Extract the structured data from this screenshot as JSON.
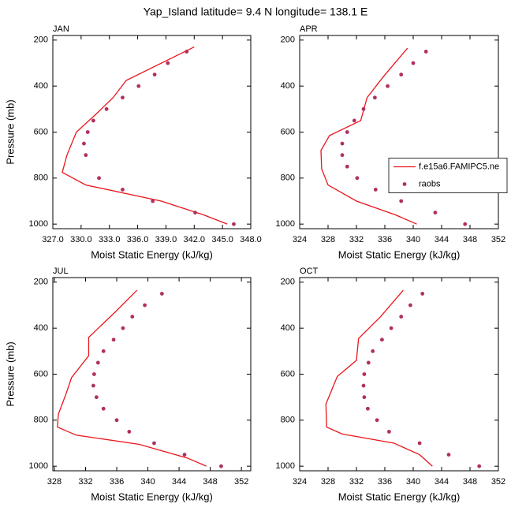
{
  "title": "Yap_Island  latitude= 9.4 N longitude= 138.1 E",
  "chart_data": [
    {
      "type": "scatter",
      "title": "JAN",
      "x_label": "Moist Static Energy (kJ/kg)",
      "y_label": "Pressure (mb)",
      "xlim": [
        327,
        348
      ],
      "xticks": [
        {
          "value": 327,
          "label": "327.0"
        },
        {
          "value": 330,
          "label": "330.0"
        },
        {
          "value": 333,
          "label": "333.0"
        },
        {
          "value": 336,
          "label": "336.0"
        },
        {
          "value": 339,
          "label": "339.0"
        },
        {
          "value": 342,
          "label": "342.0"
        },
        {
          "value": 345,
          "label": "345.0"
        },
        {
          "value": 348,
          "label": "348.0"
        }
      ],
      "ylim": [
        1020,
        180
      ],
      "yticks": [
        200,
        400,
        600,
        800,
        1000
      ],
      "series": [
        {
          "kind": "line",
          "color": "#e8161c",
          "x": [
            342.0,
            334.8,
            333.4,
            331.5,
            329.5,
            328.5,
            328.0,
            330.5,
            338.5,
            343.0,
            345.5
          ],
          "y": [
            230,
            375,
            450,
            525,
            600,
            700,
            775,
            830,
            900,
            960,
            1000
          ]
        },
        {
          "kind": "markers",
          "color": "#b03060",
          "x": [
            341.2,
            339.2,
            337.8,
            336.1,
            334.4,
            332.7,
            331.3,
            330.7,
            330.3,
            330.5,
            331.9,
            334.4,
            337.6,
            342.1,
            346.2
          ],
          "y": [
            250,
            300,
            350,
            400,
            450,
            500,
            550,
            600,
            650,
            700,
            800,
            850,
            900,
            950,
            1000
          ]
        }
      ]
    },
    {
      "type": "scatter",
      "title": "APR",
      "x_label": "Moist Static Energy (kJ/kg)",
      "xlim": [
        324,
        352
      ],
      "xticks": [
        324,
        328,
        332,
        336,
        340,
        344,
        348,
        352
      ],
      "ylim": [
        1020,
        180
      ],
      "yticks": [
        200,
        400,
        600,
        800,
        1000
      ],
      "legend": "right",
      "series": [
        {
          "kind": "line",
          "name": "f.e15a6.FAMIPC5.ne",
          "color": "#e8161c",
          "x": [
            339.2,
            335.9,
            333.5,
            332.6,
            328.2,
            327.0,
            327.1,
            328.0,
            332.0,
            337.5,
            340.5
          ],
          "y": [
            235,
            355,
            450,
            550,
            615,
            680,
            760,
            830,
            900,
            960,
            1000
          ]
        },
        {
          "kind": "markers",
          "name": "raobs",
          "color": "#b03060",
          "x": [
            341.8,
            340.0,
            338.3,
            336.4,
            334.6,
            333.0,
            331.7,
            330.7,
            330.0,
            330.0,
            330.7,
            332.1,
            334.7,
            338.3,
            343.1,
            347.3
          ],
          "y": [
            250,
            300,
            350,
            400,
            450,
            500,
            550,
            600,
            650,
            700,
            750,
            800,
            850,
            900,
            950,
            1000
          ]
        }
      ]
    },
    {
      "type": "scatter",
      "title": "JUL",
      "x_label": "Moist Static Energy (kJ/kg)",
      "y_label": "Pressure (mb)",
      "xlim": [
        327.8,
        353.2
      ],
      "xticks": [
        328,
        332,
        336,
        340,
        344,
        348,
        352
      ],
      "ylim": [
        1020,
        180
      ],
      "yticks": [
        200,
        400,
        600,
        800,
        1000
      ],
      "series": [
        {
          "kind": "line",
          "color": "#e8161c",
          "x": [
            338.6,
            335.8,
            332.4,
            332.4,
            330.2,
            329.5,
            328.5,
            328.4,
            330.8,
            338.9,
            345.1,
            347.5
          ],
          "y": [
            235,
            330,
            440,
            520,
            615,
            685,
            775,
            830,
            865,
            905,
            965,
            1000
          ]
        },
        {
          "kind": "markers",
          "color": "#b03060",
          "x": [
            341.8,
            339.6,
            338.0,
            336.8,
            335.6,
            334.3,
            333.6,
            333.1,
            333.0,
            333.4,
            334.3,
            336.0,
            337.6,
            340.8,
            344.7,
            349.4
          ],
          "y": [
            250,
            300,
            350,
            400,
            450,
            500,
            550,
            600,
            650,
            700,
            750,
            800,
            850,
            900,
            950,
            1000
          ]
        }
      ]
    },
    {
      "type": "scatter",
      "title": "OCT",
      "x_label": "Moist Static Energy (kJ/kg)",
      "xlim": [
        324,
        352
      ],
      "xticks": [
        324,
        328,
        332,
        336,
        340,
        344,
        348,
        352
      ],
      "ylim": [
        1020,
        180
      ],
      "yticks": [
        200,
        400,
        600,
        800,
        1000
      ],
      "series": [
        {
          "kind": "line",
          "color": "#e8161c",
          "x": [
            338.6,
            335.4,
            332.3,
            332.0,
            329.3,
            327.7,
            327.8,
            330.0,
            337.3,
            340.9,
            342.7
          ],
          "y": [
            235,
            350,
            445,
            540,
            610,
            730,
            830,
            860,
            900,
            950,
            1000
          ]
        },
        {
          "kind": "markers",
          "color": "#b03060",
          "x": [
            341.3,
            339.6,
            338.3,
            336.9,
            335.6,
            334.3,
            333.7,
            333.1,
            333.0,
            333.1,
            333.6,
            334.9,
            336.6,
            340.9,
            345.0,
            349.3
          ],
          "y": [
            250,
            300,
            350,
            400,
            450,
            500,
            550,
            600,
            650,
            700,
            750,
            800,
            850,
            900,
            950,
            1000
          ]
        }
      ]
    }
  ]
}
